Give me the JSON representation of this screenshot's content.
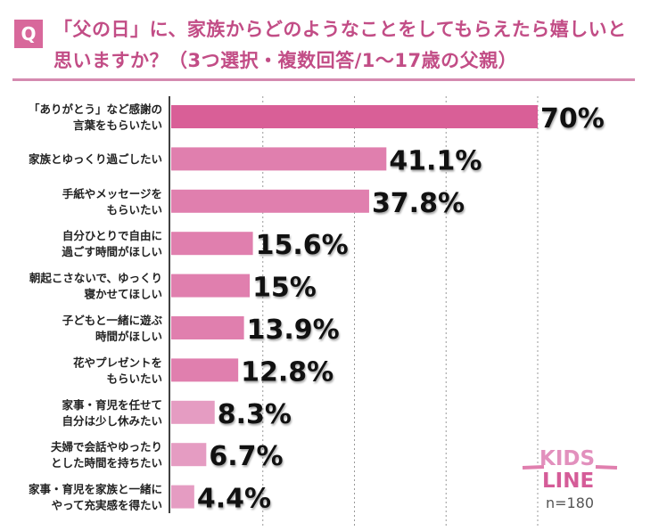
{
  "badge": "Q",
  "title_line1": "「父の日」に、家族からどのようなことをしてもらえたら嬉しいと",
  "title_line2": "思いますか？（3つ選択・複数回答/1〜17歳の父親）",
  "chart_data": {
    "type": "bar",
    "orientation": "horizontal",
    "title": "「父の日」に、家族からどのようなことをしてもらえたら嬉しいと思いますか？（3つ選択・複数回答/1〜17歳の父親）",
    "categories": [
      [
        "「ありがとう」など感謝の",
        "言葉をもらいたい"
      ],
      [
        "家族とゆっくり過ごしたい"
      ],
      [
        "手紙やメッセージを",
        "もらいたい"
      ],
      [
        "自分ひとりで自由に",
        "過ごす時間がほしい"
      ],
      [
        "朝起こさないで、ゆっくり",
        "寝かせてほしい"
      ],
      [
        "子どもと一緒に遊ぶ",
        "時間がほしい"
      ],
      [
        "花やプレゼントを",
        "もらいたい"
      ],
      [
        "家事・育児を任せて",
        "自分は少し休みたい"
      ],
      [
        "夫婦で会話やゆったり",
        "とした時間を持ちたい"
      ],
      [
        "家事・育児を家族と一緒に",
        "やって充実感を得たい"
      ]
    ],
    "values": [
      70,
      41.1,
      37.8,
      15.6,
      15,
      13.9,
      12.8,
      8.3,
      6.7,
      4.4
    ],
    "value_labels": [
      "70%",
      "41.1%",
      "37.8%",
      "15.6%",
      "15%",
      "13.9%",
      "12.8%",
      "8.3%",
      "6.7%",
      "4.4%"
    ],
    "xlim": [
      0,
      70
    ],
    "grid": true,
    "colors": {
      "top": "#d95f97",
      "bar": "#e07fae",
      "light": "#e59cc2"
    },
    "note": "n=180"
  },
  "logo": {
    "line1": "KIDS",
    "line2": "LINE"
  }
}
